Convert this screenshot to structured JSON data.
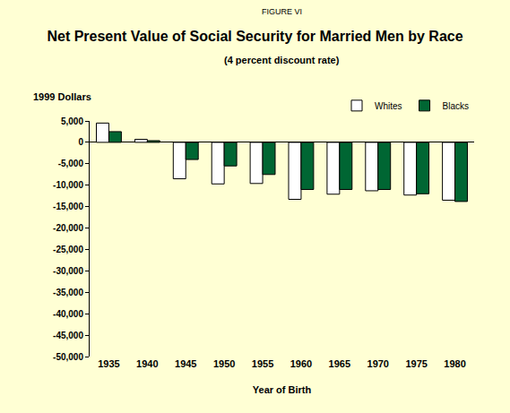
{
  "chart_data": {
    "type": "bar",
    "title": "Net Present Value of Social Security for Married Men by Race",
    "subtitle": "(4 percent discount rate)",
    "annotations": [
      "FIGURE VI"
    ],
    "x_label": "Year of Birth",
    "y_label": "1999 Dollars",
    "categories": [
      "1935",
      "1940",
      "1945",
      "1950",
      "1955",
      "1960",
      "1965",
      "1970",
      "1975",
      "1980"
    ],
    "series": [
      {
        "name": "Whites",
        "color": "#ffffff",
        "values": [
          4500,
          700,
          -8500,
          -9700,
          -9600,
          -13300,
          -12100,
          -11300,
          -12300,
          -13500
        ]
      },
      {
        "name": "Blacks",
        "color": "#006633",
        "values": [
          2500,
          400,
          -4000,
          -5500,
          -7500,
          -11000,
          -11000,
          -11000,
          -12000,
          -13800
        ]
      }
    ],
    "ylim": [
      -50000,
      5000
    ],
    "yticks": [
      {
        "value": 5000,
        "label": "5,000"
      },
      0,
      {
        "value": -5000,
        "label": "-5,000"
      },
      {
        "value": -10000,
        "label": "-10,000"
      },
      {
        "value": -15000,
        "label": "-15,000"
      },
      {
        "value": -20000,
        "label": "-20,000"
      },
      {
        "value": -25000,
        "label": "-25,000"
      },
      {
        "value": -30000,
        "label": "-30,000"
      },
      {
        "value": -35000,
        "label": "-35,000"
      },
      {
        "value": -40000,
        "label": "-40,000"
      },
      {
        "value": -45000,
        "label": "-45,000"
      },
      {
        "value": -50000,
        "label": "-50,000"
      }
    ],
    "grid": false,
    "legend": "top right"
  }
}
